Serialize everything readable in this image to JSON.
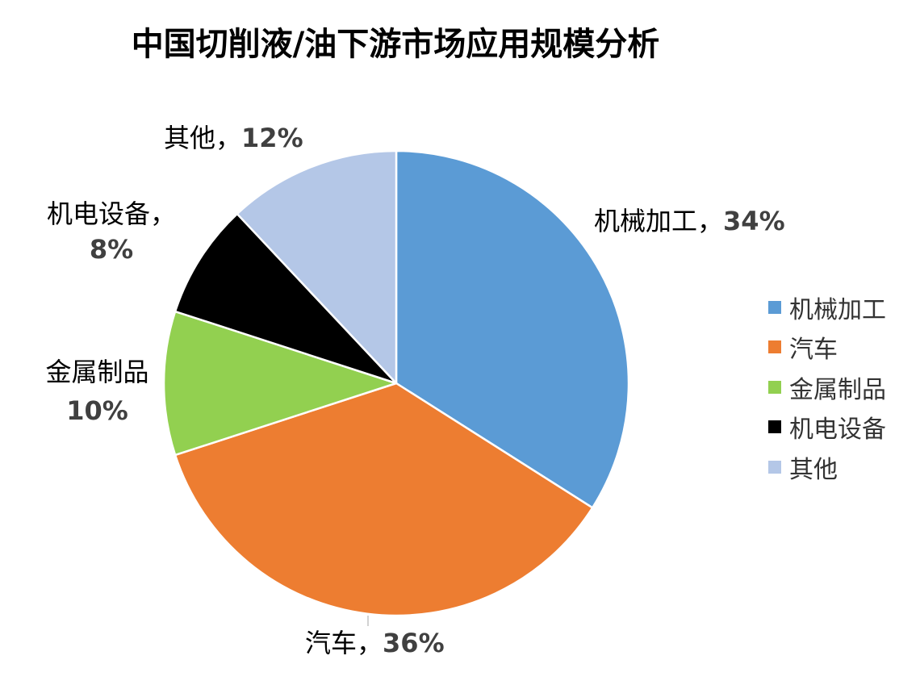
{
  "chart_data": {
    "type": "pie",
    "title": "中国切削液/油下游市场应用规模分析",
    "categories": [
      "机械加工",
      "汽车",
      "金属制品",
      "机电设备",
      "其他"
    ],
    "values": [
      34,
      36,
      10,
      8,
      12
    ],
    "colors": [
      "#5B9BD5",
      "#ED7D31",
      "#92D050",
      "#000000",
      "#B4C7E7"
    ],
    "data_labels": [
      {
        "category": "机械加工",
        "separator": "，",
        "percent": "34%"
      },
      {
        "category": "汽车",
        "separator": "，",
        "percent": "36%"
      },
      {
        "category": "金属制品",
        "separator": "",
        "percent": "10%"
      },
      {
        "category": "机电设备",
        "separator": "，",
        "percent": "8%"
      },
      {
        "category": "其他",
        "separator": "，",
        "percent": "12%"
      }
    ],
    "legend": {
      "position": "right",
      "items": [
        "机械加工",
        "汽车",
        "金属制品",
        "机电设备",
        "其他"
      ]
    },
    "start_angle": "12 o'clock, clockwise",
    "slice_border_color": "#FFFFFF"
  }
}
